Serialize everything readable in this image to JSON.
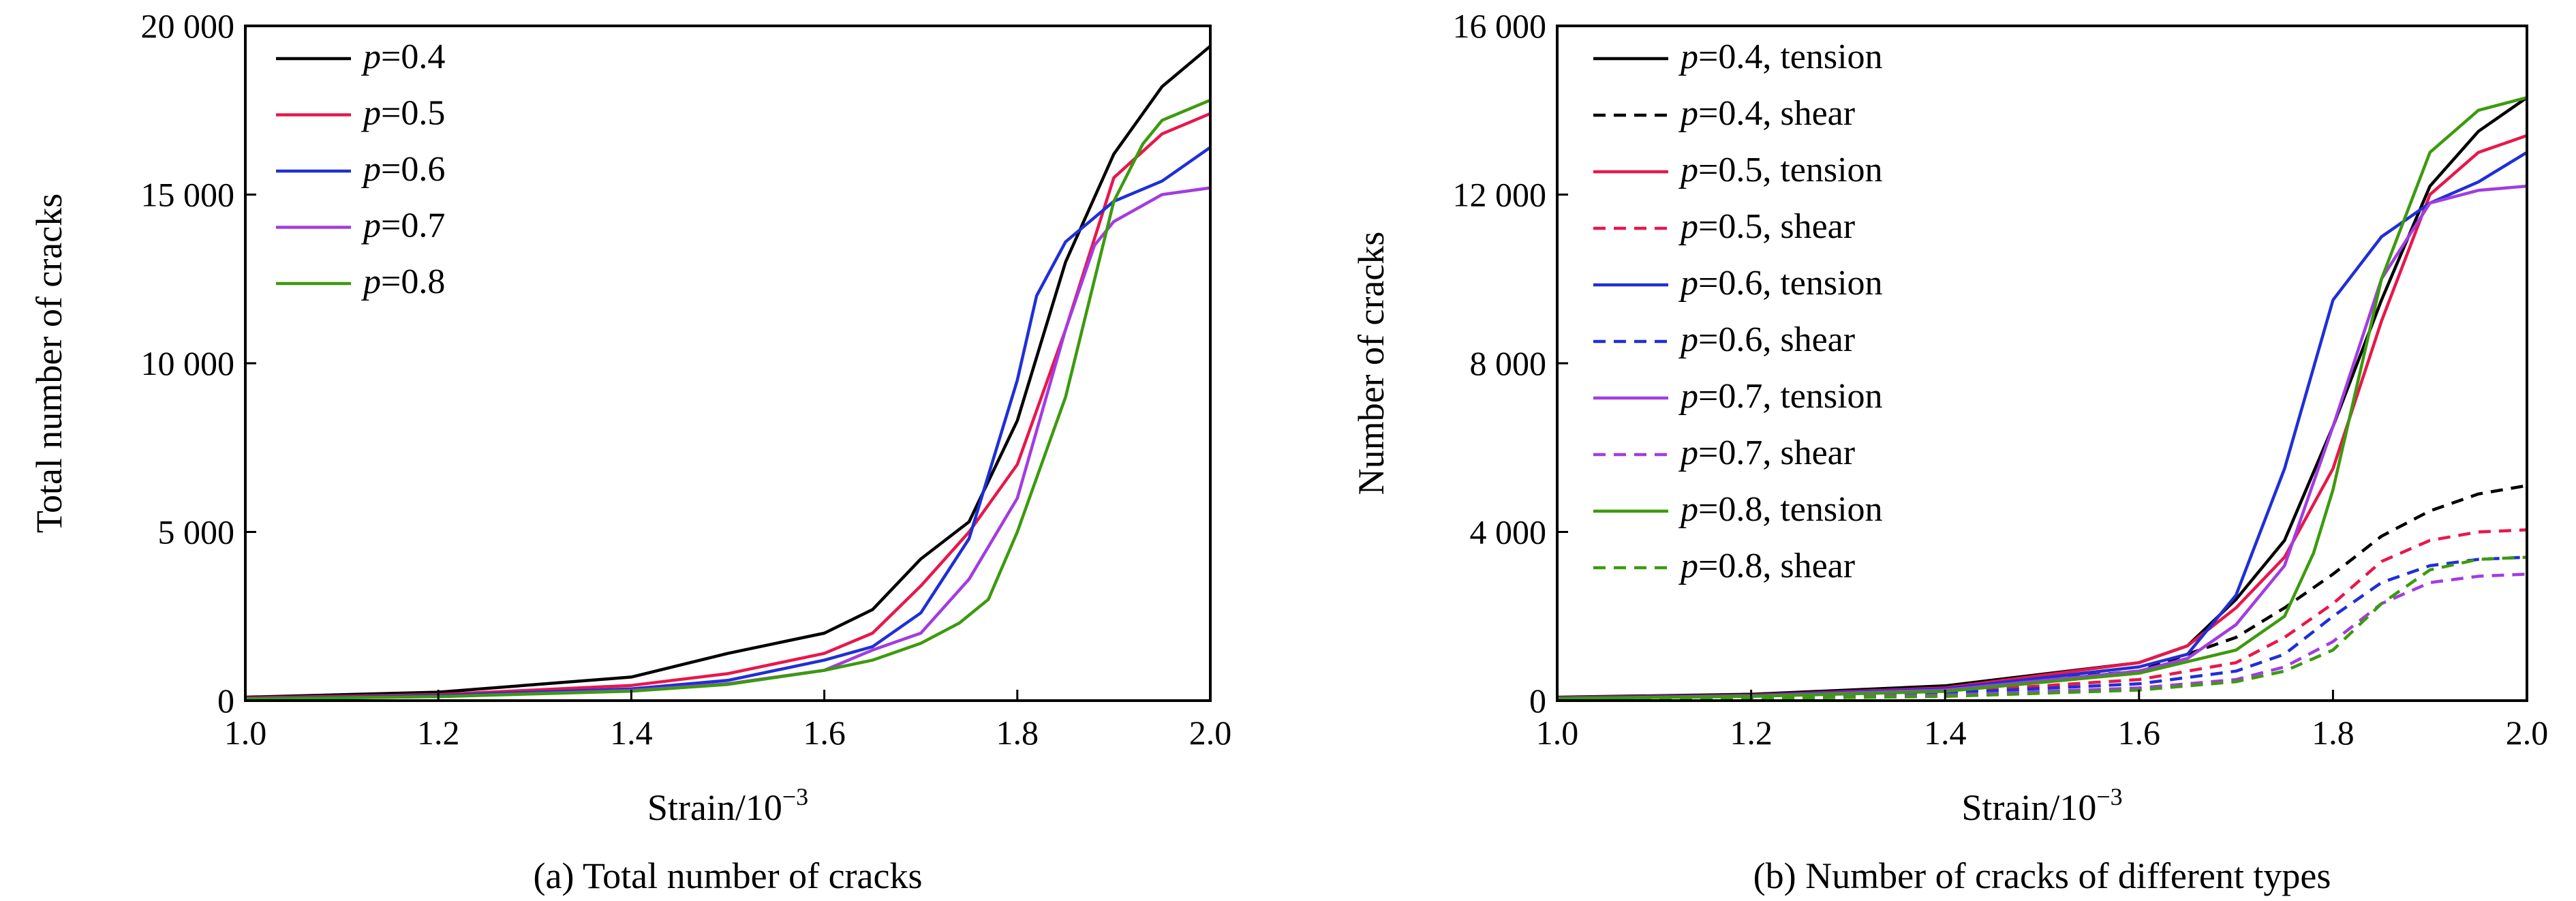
{
  "chart_data": [
    {
      "type": "line",
      "caption": "(a) Total number of cracks",
      "xlabel_text": "Strain/10",
      "xlabel_exp": "−3",
      "ylabel": "Total number of cracks",
      "xlim": [
        1.0,
        2.0
      ],
      "ylim": [
        0,
        20000
      ],
      "xticks": [
        1.0,
        1.2,
        1.4,
        1.6,
        1.8,
        2.0
      ],
      "xtick_labels": [
        "1.0",
        "1.2",
        "1.4",
        "1.6",
        "1.8",
        "2.0"
      ],
      "yticks": [
        0,
        5000,
        10000,
        15000,
        20000
      ],
      "ytick_labels": [
        "0",
        "5 000",
        "10 000",
        "15 000",
        "20 000"
      ],
      "legend_position": "top-left",
      "series": [
        {
          "name": "p",
          "value": "=0.4",
          "color": "#000000",
          "dash": "solid",
          "x": [
            1.0,
            1.2,
            1.4,
            1.5,
            1.6,
            1.65,
            1.7,
            1.75,
            1.8,
            1.85,
            1.9,
            1.95,
            2.0
          ],
          "y": [
            100,
            250,
            700,
            1400,
            2000,
            2700,
            4200,
            5300,
            8300,
            13000,
            16200,
            18200,
            19400
          ]
        },
        {
          "name": "p",
          "value": "=0.5",
          "color": "#e8174b",
          "dash": "solid",
          "x": [
            1.0,
            1.2,
            1.4,
            1.5,
            1.6,
            1.65,
            1.7,
            1.75,
            1.8,
            1.85,
            1.9,
            1.95,
            2.0
          ],
          "y": [
            80,
            180,
            450,
            800,
            1400,
            2000,
            3400,
            5000,
            7000,
            11000,
            15500,
            16800,
            17400
          ]
        },
        {
          "name": "p",
          "value": "=0.6",
          "color": "#1f2fd6",
          "dash": "solid",
          "x": [
            1.0,
            1.2,
            1.4,
            1.5,
            1.6,
            1.65,
            1.7,
            1.75,
            1.8,
            1.82,
            1.85,
            1.9,
            1.95,
            2.0
          ],
          "y": [
            60,
            150,
            350,
            600,
            1200,
            1600,
            2600,
            4800,
            9500,
            12000,
            13600,
            14800,
            15400,
            16400
          ]
        },
        {
          "name": "p",
          "value": "=0.7",
          "color": "#a23ce0",
          "dash": "solid",
          "x": [
            1.0,
            1.2,
            1.4,
            1.5,
            1.6,
            1.65,
            1.7,
            1.75,
            1.8,
            1.85,
            1.88,
            1.9,
            1.95,
            2.0
          ],
          "y": [
            50,
            120,
            300,
            500,
            900,
            1500,
            2000,
            3600,
            6000,
            11000,
            13500,
            14200,
            15000,
            15200
          ]
        },
        {
          "name": "p",
          "value": "=0.8",
          "color": "#3c9a0e",
          "dash": "solid",
          "x": [
            1.0,
            1.2,
            1.4,
            1.5,
            1.6,
            1.65,
            1.7,
            1.74,
            1.77,
            1.8,
            1.85,
            1.9,
            1.93,
            1.95,
            2.0
          ],
          "y": [
            50,
            120,
            280,
            480,
            900,
            1200,
            1700,
            2300,
            3000,
            5000,
            9000,
            14800,
            16500,
            17200,
            17800
          ]
        }
      ]
    },
    {
      "type": "line",
      "caption": "(b) Number of cracks of different types",
      "xlabel_text": "Strain/10",
      "xlabel_exp": "−3",
      "ylabel": "Number of cracks",
      "xlim": [
        1.0,
        2.0
      ],
      "ylim": [
        0,
        16000
      ],
      "xticks": [
        1.0,
        1.2,
        1.4,
        1.6,
        1.8,
        2.0
      ],
      "xtick_labels": [
        "1.0",
        "1.2",
        "1.4",
        "1.6",
        "1.8",
        "2.0"
      ],
      "yticks": [
        0,
        4000,
        8000,
        12000,
        16000
      ],
      "ytick_labels": [
        "0",
        "4 000",
        "8 000",
        "12 000",
        "16 000"
      ],
      "legend_position": "top-left",
      "series": [
        {
          "name": "p",
          "value": "=0.4, tension",
          "color": "#000000",
          "dash": "solid",
          "x": [
            1.0,
            1.2,
            1.4,
            1.6,
            1.65,
            1.7,
            1.75,
            1.8,
            1.85,
            1.9,
            1.95,
            2.0
          ],
          "y": [
            80,
            150,
            350,
            900,
            1300,
            2400,
            3800,
            6500,
            9500,
            12200,
            13500,
            14300
          ]
        },
        {
          "name": "p",
          "value": "=0.4, shear",
          "color": "#000000",
          "dash": "dashed",
          "x": [
            1.0,
            1.2,
            1.4,
            1.6,
            1.7,
            1.75,
            1.8,
            1.85,
            1.9,
            1.95,
            2.0
          ],
          "y": [
            60,
            150,
            300,
            700,
            1500,
            2200,
            3000,
            3900,
            4500,
            4900,
            5100
          ]
        },
        {
          "name": "p",
          "value": "=0.5, tension",
          "color": "#e8174b",
          "dash": "solid",
          "x": [
            1.0,
            1.2,
            1.4,
            1.6,
            1.65,
            1.7,
            1.75,
            1.8,
            1.85,
            1.9,
            1.95,
            2.0
          ],
          "y": [
            70,
            130,
            300,
            900,
            1300,
            2200,
            3400,
            5500,
            9000,
            12000,
            13000,
            13400
          ]
        },
        {
          "name": "p",
          "value": "=0.5, shear",
          "color": "#e8174b",
          "dash": "dashed",
          "x": [
            1.0,
            1.2,
            1.4,
            1.6,
            1.7,
            1.75,
            1.8,
            1.85,
            1.9,
            1.95,
            2.0
          ],
          "y": [
            40,
            100,
            200,
            500,
            900,
            1500,
            2300,
            3300,
            3800,
            4000,
            4050
          ]
        },
        {
          "name": "p",
          "value": "=0.6, tension",
          "color": "#1f2fd6",
          "dash": "solid",
          "x": [
            1.0,
            1.2,
            1.4,
            1.6,
            1.65,
            1.7,
            1.75,
            1.8,
            1.85,
            1.9,
            1.95,
            2.0
          ],
          "y": [
            60,
            120,
            280,
            800,
            1100,
            2500,
            5500,
            9500,
            11000,
            11800,
            12300,
            13000
          ]
        },
        {
          "name": "p",
          "value": "=0.6, shear",
          "color": "#1f2fd6",
          "dash": "dashed",
          "x": [
            1.0,
            1.2,
            1.4,
            1.6,
            1.7,
            1.75,
            1.8,
            1.85,
            1.9,
            1.95,
            2.0
          ],
          "y": [
            30,
            80,
            180,
            400,
            700,
            1100,
            2000,
            2800,
            3200,
            3350,
            3400
          ]
        },
        {
          "name": "p",
          "value": "=0.7, tension",
          "color": "#a23ce0",
          "dash": "solid",
          "x": [
            1.0,
            1.2,
            1.4,
            1.6,
            1.65,
            1.7,
            1.75,
            1.8,
            1.85,
            1.9,
            1.95,
            2.0
          ],
          "y": [
            50,
            110,
            250,
            700,
            1000,
            1800,
            3200,
            6500,
            10000,
            11800,
            12100,
            12200
          ]
        },
        {
          "name": "p",
          "value": "=0.7, shear",
          "color": "#a23ce0",
          "dash": "dashed",
          "x": [
            1.0,
            1.2,
            1.4,
            1.6,
            1.7,
            1.75,
            1.8,
            1.85,
            1.9,
            1.95,
            2.0
          ],
          "y": [
            25,
            60,
            130,
            300,
            500,
            800,
            1400,
            2300,
            2800,
            2950,
            3000
          ]
        },
        {
          "name": "p",
          "value": "=0.8, tension",
          "color": "#3c9a0e",
          "dash": "solid",
          "x": [
            1.0,
            1.2,
            1.4,
            1.6,
            1.7,
            1.75,
            1.78,
            1.8,
            1.85,
            1.9,
            1.95,
            2.0
          ],
          "y": [
            50,
            100,
            220,
            650,
            1200,
            2000,
            3500,
            5000,
            10000,
            13000,
            14000,
            14300
          ]
        },
        {
          "name": "p",
          "value": "=0.8, shear",
          "color": "#3c9a0e",
          "dash": "dashed",
          "x": [
            1.0,
            1.2,
            1.4,
            1.6,
            1.7,
            1.75,
            1.8,
            1.85,
            1.9,
            1.95,
            2.0
          ],
          "y": [
            20,
            50,
            100,
            250,
            450,
            700,
            1200,
            2300,
            3100,
            3350,
            3400
          ]
        }
      ]
    }
  ]
}
